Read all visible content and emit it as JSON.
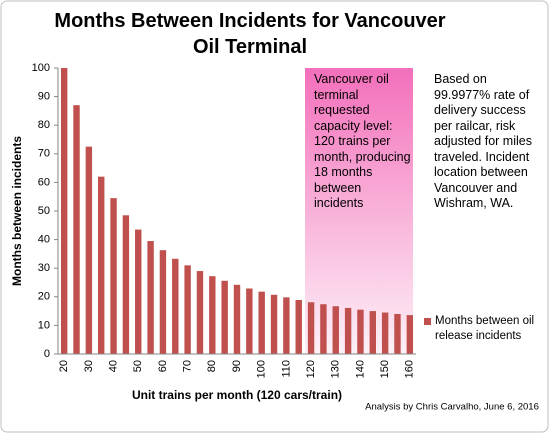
{
  "chart_data": {
    "type": "bar",
    "title": "Months Between Incidents for Vancouver Oil Terminal",
    "y_label": "Months between incidents",
    "x_label": "Unit trains per month (120 cars/train)",
    "annotations": [
      "Vancouver oil terminal requested capacity level: 120 trains per month, producing 18 months between incidents",
      "Based on 99.9977% rate of  delivery success per railcar, risk adjusted for miles traveled. Incident location between Vancouver and Wishram, WA."
    ],
    "source": "Analysis by Chris Carvalho, June 6, 2016",
    "categories": [
      "20",
      null,
      "30",
      null,
      "40",
      null,
      "50",
      null,
      "60",
      null,
      "70",
      null,
      "80",
      null,
      "90",
      null,
      "100",
      null,
      "110",
      null,
      "120",
      null,
      "130",
      null,
      "140",
      null,
      "150",
      null,
      "160"
    ],
    "series": [
      {
        "name": "Months between oil release incidents",
        "color": "#c0504d",
        "values": [
          100,
          87,
          72.5,
          62,
          54.5,
          48.5,
          43.5,
          39.5,
          36.3,
          33.3,
          31,
          29,
          27.2,
          25.6,
          24.2,
          22.9,
          21.8,
          20.7,
          19.8,
          18.9,
          18.1,
          17.4,
          16.7,
          16.1,
          15.5,
          15,
          14.5,
          14,
          13.6
        ]
      }
    ],
    "ylim": [
      0,
      100
    ],
    "yticks": [
      0,
      10,
      20,
      30,
      40,
      50,
      60,
      70,
      80,
      90,
      100
    ]
  }
}
